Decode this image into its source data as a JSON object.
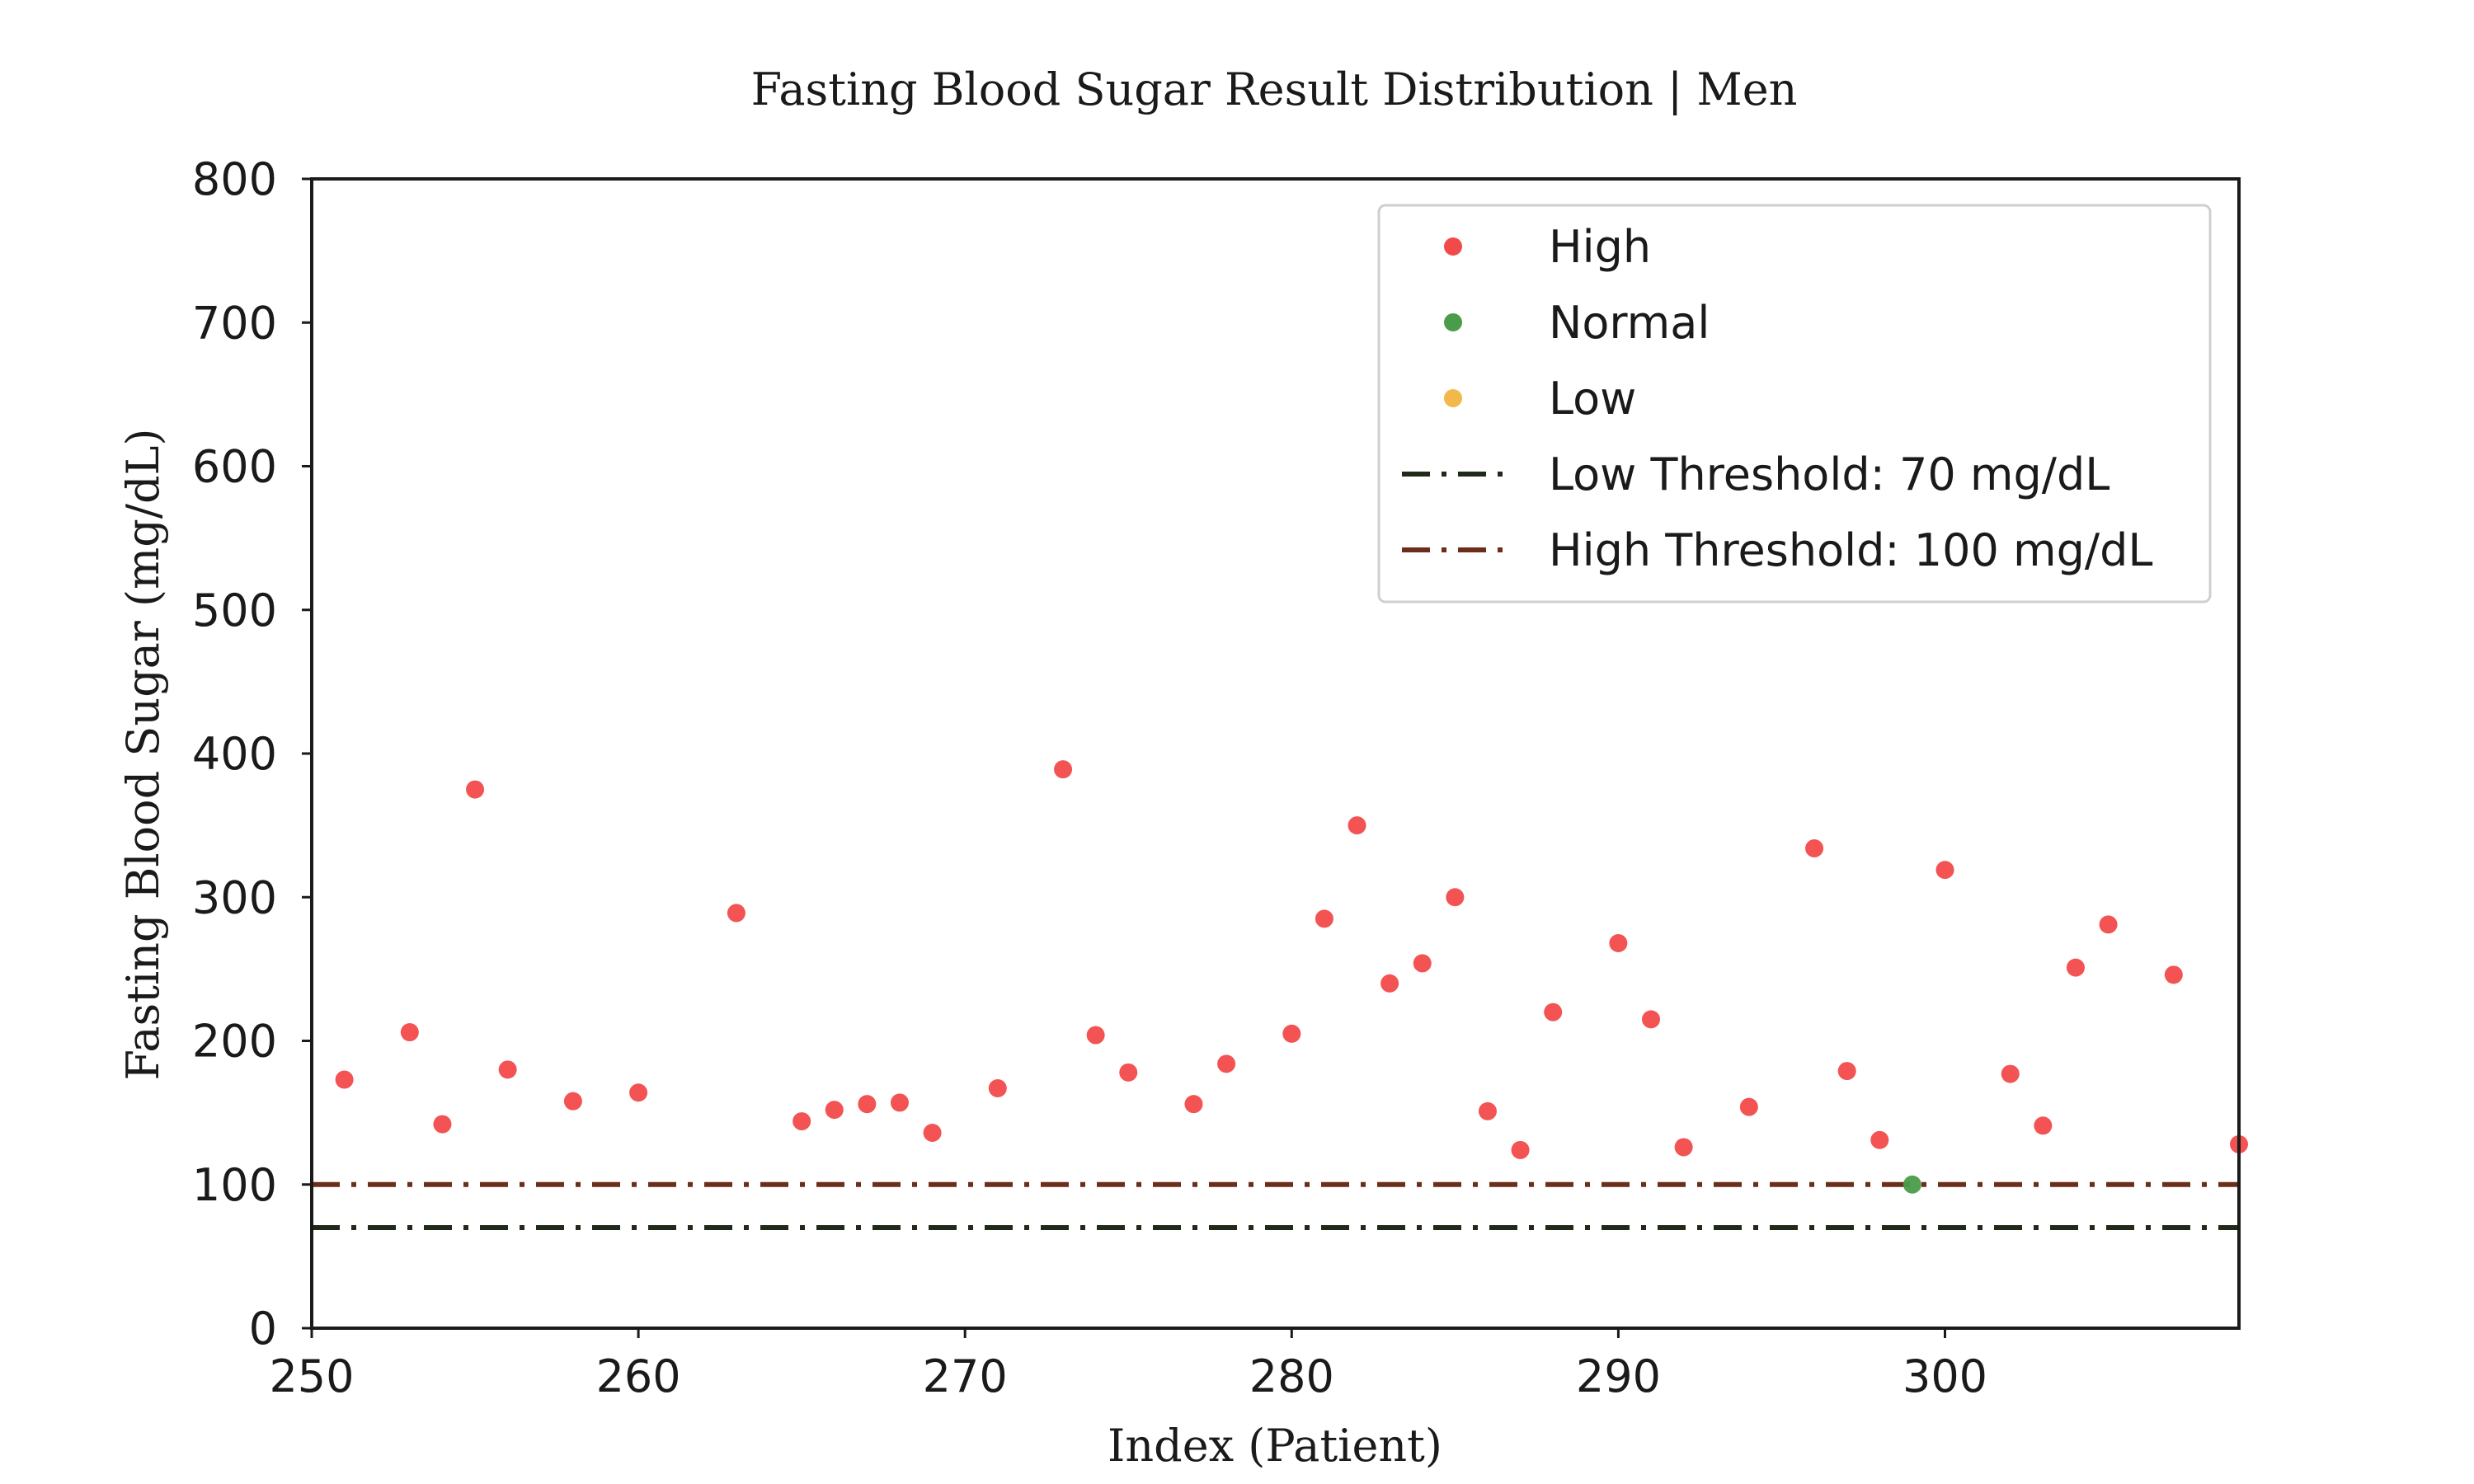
{
  "chart_data": {
    "type": "scatter",
    "title": "Fasting Blood Sugar Result Distribution | Men",
    "xlabel": "Index (Patient)",
    "ylabel": "Fasting Blood Sugar (mg/dL)",
    "xlim": [
      250,
      309
    ],
    "ylim": [
      0,
      800
    ],
    "xticks": [
      250,
      260,
      270,
      280,
      290,
      300
    ],
    "yticks": [
      0,
      100,
      200,
      300,
      400,
      500,
      600,
      700,
      800
    ],
    "grid": false,
    "legend_position": "top-right",
    "series": [
      {
        "name": "High",
        "color": "#f24a4a",
        "points": [
          [
            251,
            173
          ],
          [
            253,
            206
          ],
          [
            254,
            142
          ],
          [
            255,
            375
          ],
          [
            256,
            180
          ],
          [
            258,
            158
          ],
          [
            260,
            164
          ],
          [
            263,
            289
          ],
          [
            265,
            144
          ],
          [
            266,
            152
          ],
          [
            267,
            156
          ],
          [
            268,
            157
          ],
          [
            269,
            136
          ],
          [
            271,
            167
          ],
          [
            273,
            389
          ],
          [
            274,
            204
          ],
          [
            275,
            178
          ],
          [
            277,
            156
          ],
          [
            278,
            184
          ],
          [
            280,
            205
          ],
          [
            281,
            285
          ],
          [
            282,
            350
          ],
          [
            283,
            240
          ],
          [
            284,
            254
          ],
          [
            285,
            300
          ],
          [
            286,
            151
          ],
          [
            287,
            124
          ],
          [
            288,
            220
          ],
          [
            290,
            268
          ],
          [
            291,
            215
          ],
          [
            292,
            126
          ],
          [
            294,
            154
          ],
          [
            296,
            334
          ],
          [
            297,
            179
          ],
          [
            298,
            131
          ],
          [
            300,
            319
          ],
          [
            302,
            177
          ],
          [
            303,
            141
          ],
          [
            304,
            251
          ],
          [
            305,
            281
          ],
          [
            307,
            246
          ],
          [
            309,
            128
          ]
        ]
      },
      {
        "name": "Normal",
        "color": "#4a9c4a",
        "points": [
          [
            299,
            100
          ]
        ]
      },
      {
        "name": "Low",
        "color": "#f2b94a",
        "points": []
      }
    ],
    "thresholds": [
      {
        "name": "Low Threshold: 70 mg/dL",
        "value": 70,
        "color": "#1f2a1a"
      },
      {
        "name": "High Threshold: 100 mg/dL",
        "value": 100,
        "color": "#6b2e1a"
      }
    ]
  }
}
